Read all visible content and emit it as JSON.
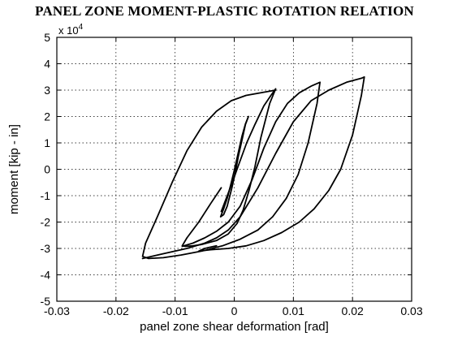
{
  "chart_data": {
    "type": "line",
    "title": "PANEL ZONE MOMENT-PLASTIC ROTATION RELATION",
    "xlabel": "panel zone shear deformation [rad]",
    "ylabel": "moment  [kip - in]",
    "y_multiplier_base": "x 10",
    "y_multiplier_exp": "4",
    "xlim": [
      -0.03,
      0.03
    ],
    "ylim": [
      -5,
      5
    ],
    "xticks": [
      -0.03,
      -0.02,
      -0.01,
      0,
      0.01,
      0.02,
      0.03
    ],
    "xtick_labels": [
      "-0.03",
      "-0.02",
      "-0.01",
      "0",
      "0.01",
      "0.02",
      "0.03"
    ],
    "yticks": [
      -5,
      -4,
      -3,
      -2,
      -1,
      0,
      1,
      2,
      3,
      4,
      5
    ],
    "ytick_labels": [
      "-5",
      "-4",
      "-3",
      "-2",
      "-1",
      "0",
      "1",
      "2",
      "3",
      "4",
      "5"
    ],
    "grid": true,
    "line_color": "#000000",
    "series": [
      {
        "x": [
          -0.0018,
          -0.0012,
          -0.0004,
          0.0002,
          0.0007,
          0.0014,
          0.0019,
          0.0024,
          0.0019,
          0.0013,
          0.0006,
          0.0,
          -0.0006,
          -0.0012,
          -0.0018,
          -0.0023,
          -0.0018
        ],
        "y": [
          -1.72,
          -1.4,
          -0.7,
          -0.1,
          0.5,
          1.2,
          1.7,
          2.0,
          1.72,
          1.25,
          0.55,
          -0.05,
          -0.6,
          -1.1,
          -1.5,
          -1.8,
          -1.72
        ]
      },
      {
        "x": [
          -0.0022,
          -0.0005,
          0.0008,
          0.0021,
          0.0035,
          0.005,
          0.0062,
          0.007,
          0.006,
          0.0045,
          0.0035,
          0.0025,
          0.0015,
          0.0005,
          -0.001,
          -0.003,
          -0.0055,
          -0.007,
          -0.0082,
          -0.0088,
          -0.008,
          -0.006,
          -0.004,
          -0.0022
        ],
        "y": [
          -1.6,
          -0.6,
          0.2,
          1.0,
          1.7,
          2.4,
          2.8,
          3.05,
          2.5,
          1.2,
          0.1,
          -0.8,
          -1.55,
          -2.05,
          -2.45,
          -2.7,
          -2.85,
          -2.9,
          -2.92,
          -2.9,
          -2.6,
          -2.0,
          -1.3,
          -0.7
        ]
      },
      {
        "x": [
          -0.0088,
          -0.007,
          -0.005,
          -0.003,
          -0.001,
          0.001,
          0.003,
          0.005,
          0.007,
          0.009,
          0.011,
          0.013,
          0.0145,
          0.014,
          0.0125,
          0.0108,
          0.0088,
          0.0065,
          0.004,
          0.001,
          -0.002,
          -0.0055,
          -0.009,
          -0.012,
          -0.0145,
          -0.0155,
          -0.015,
          -0.013,
          -0.0105,
          -0.008,
          -0.0055,
          -0.003,
          -0.0005,
          0.002,
          0.0045,
          0.007
        ],
        "y": [
          -2.92,
          -2.8,
          -2.6,
          -2.35,
          -2.0,
          -1.4,
          -0.4,
          0.8,
          1.8,
          2.5,
          2.9,
          3.15,
          3.3,
          2.5,
          1.0,
          -0.2,
          -1.1,
          -1.8,
          -2.3,
          -2.65,
          -2.9,
          -3.1,
          -3.25,
          -3.35,
          -3.38,
          -3.3,
          -2.8,
          -1.8,
          -0.5,
          0.7,
          1.6,
          2.2,
          2.6,
          2.8,
          2.9,
          3.0
        ]
      },
      {
        "x": [
          -0.0155,
          -0.012,
          -0.008,
          -0.005,
          -0.003,
          -0.001,
          0.001,
          0.004,
          0.007,
          0.01,
          0.013,
          0.016,
          0.019,
          0.0215,
          0.022,
          0.0215,
          0.02,
          0.018,
          0.016,
          0.0135,
          0.011,
          0.008,
          0.005,
          0.002,
          -0.001,
          -0.004,
          -0.006,
          -0.005,
          -0.003
        ],
        "y": [
          -3.38,
          -3.2,
          -3.0,
          -2.8,
          -2.6,
          -2.3,
          -1.8,
          -0.7,
          0.6,
          1.8,
          2.6,
          3.0,
          3.3,
          3.45,
          3.5,
          2.8,
          1.3,
          0.0,
          -0.8,
          -1.5,
          -2.0,
          -2.4,
          -2.7,
          -2.9,
          -3.0,
          -3.05,
          -3.1,
          -3.0,
          -2.9
        ]
      }
    ]
  }
}
